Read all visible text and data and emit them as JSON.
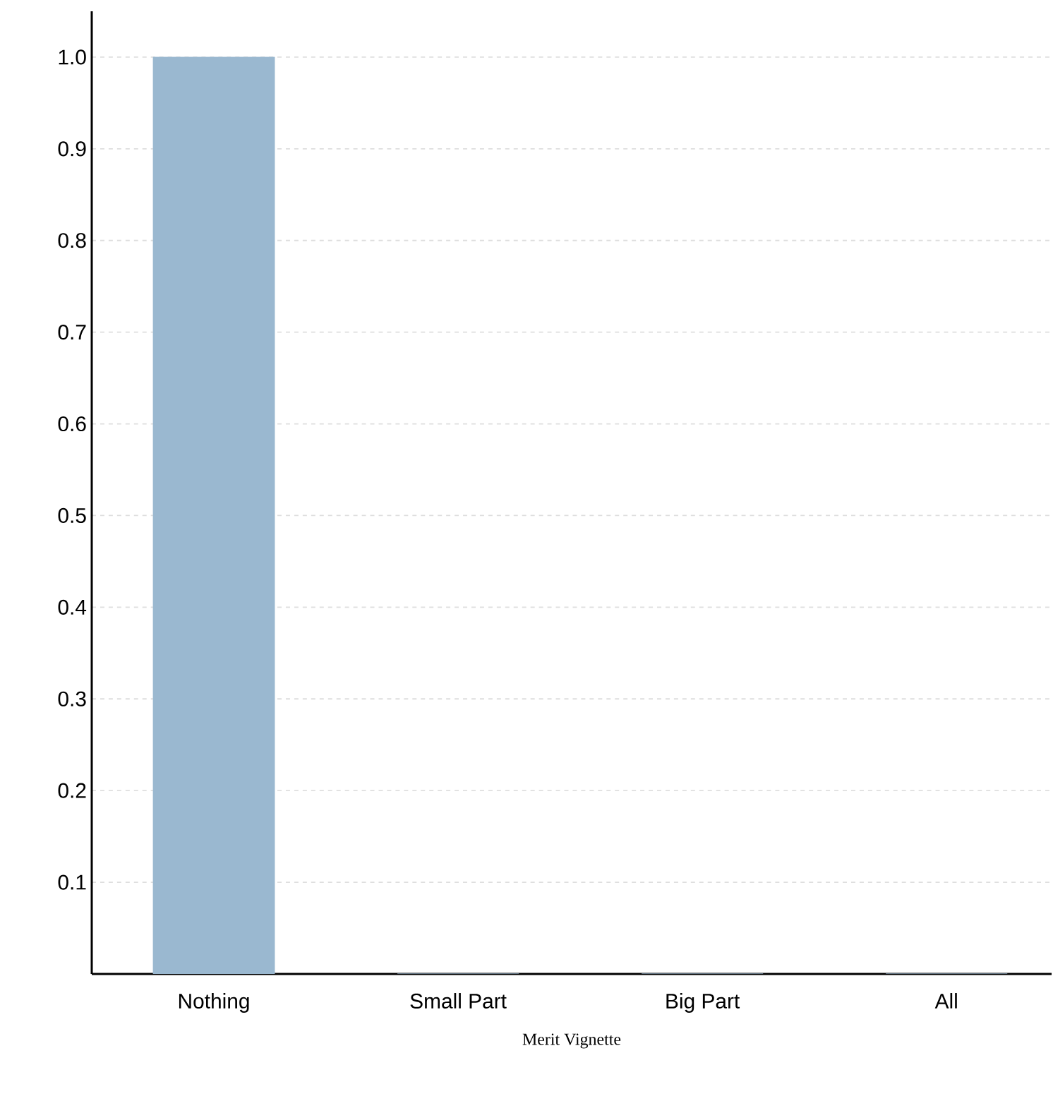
{
  "chart_data": {
    "type": "bar",
    "xlabel": "Merit Vignette",
    "categories": [
      "Nothing",
      "Small Part",
      "Big Part",
      "All"
    ],
    "values": [
      1.0,
      0,
      0,
      0
    ],
    "color": "#9ab8d0",
    "ylim": [
      0,
      1.05
    ],
    "yticks": [
      0.1,
      0.2,
      0.3,
      0.4,
      0.5,
      0.6,
      0.7,
      0.8,
      0.9,
      {
        "value": 1,
        "label": "1.0"
      }
    ],
    "grid": "y"
  }
}
